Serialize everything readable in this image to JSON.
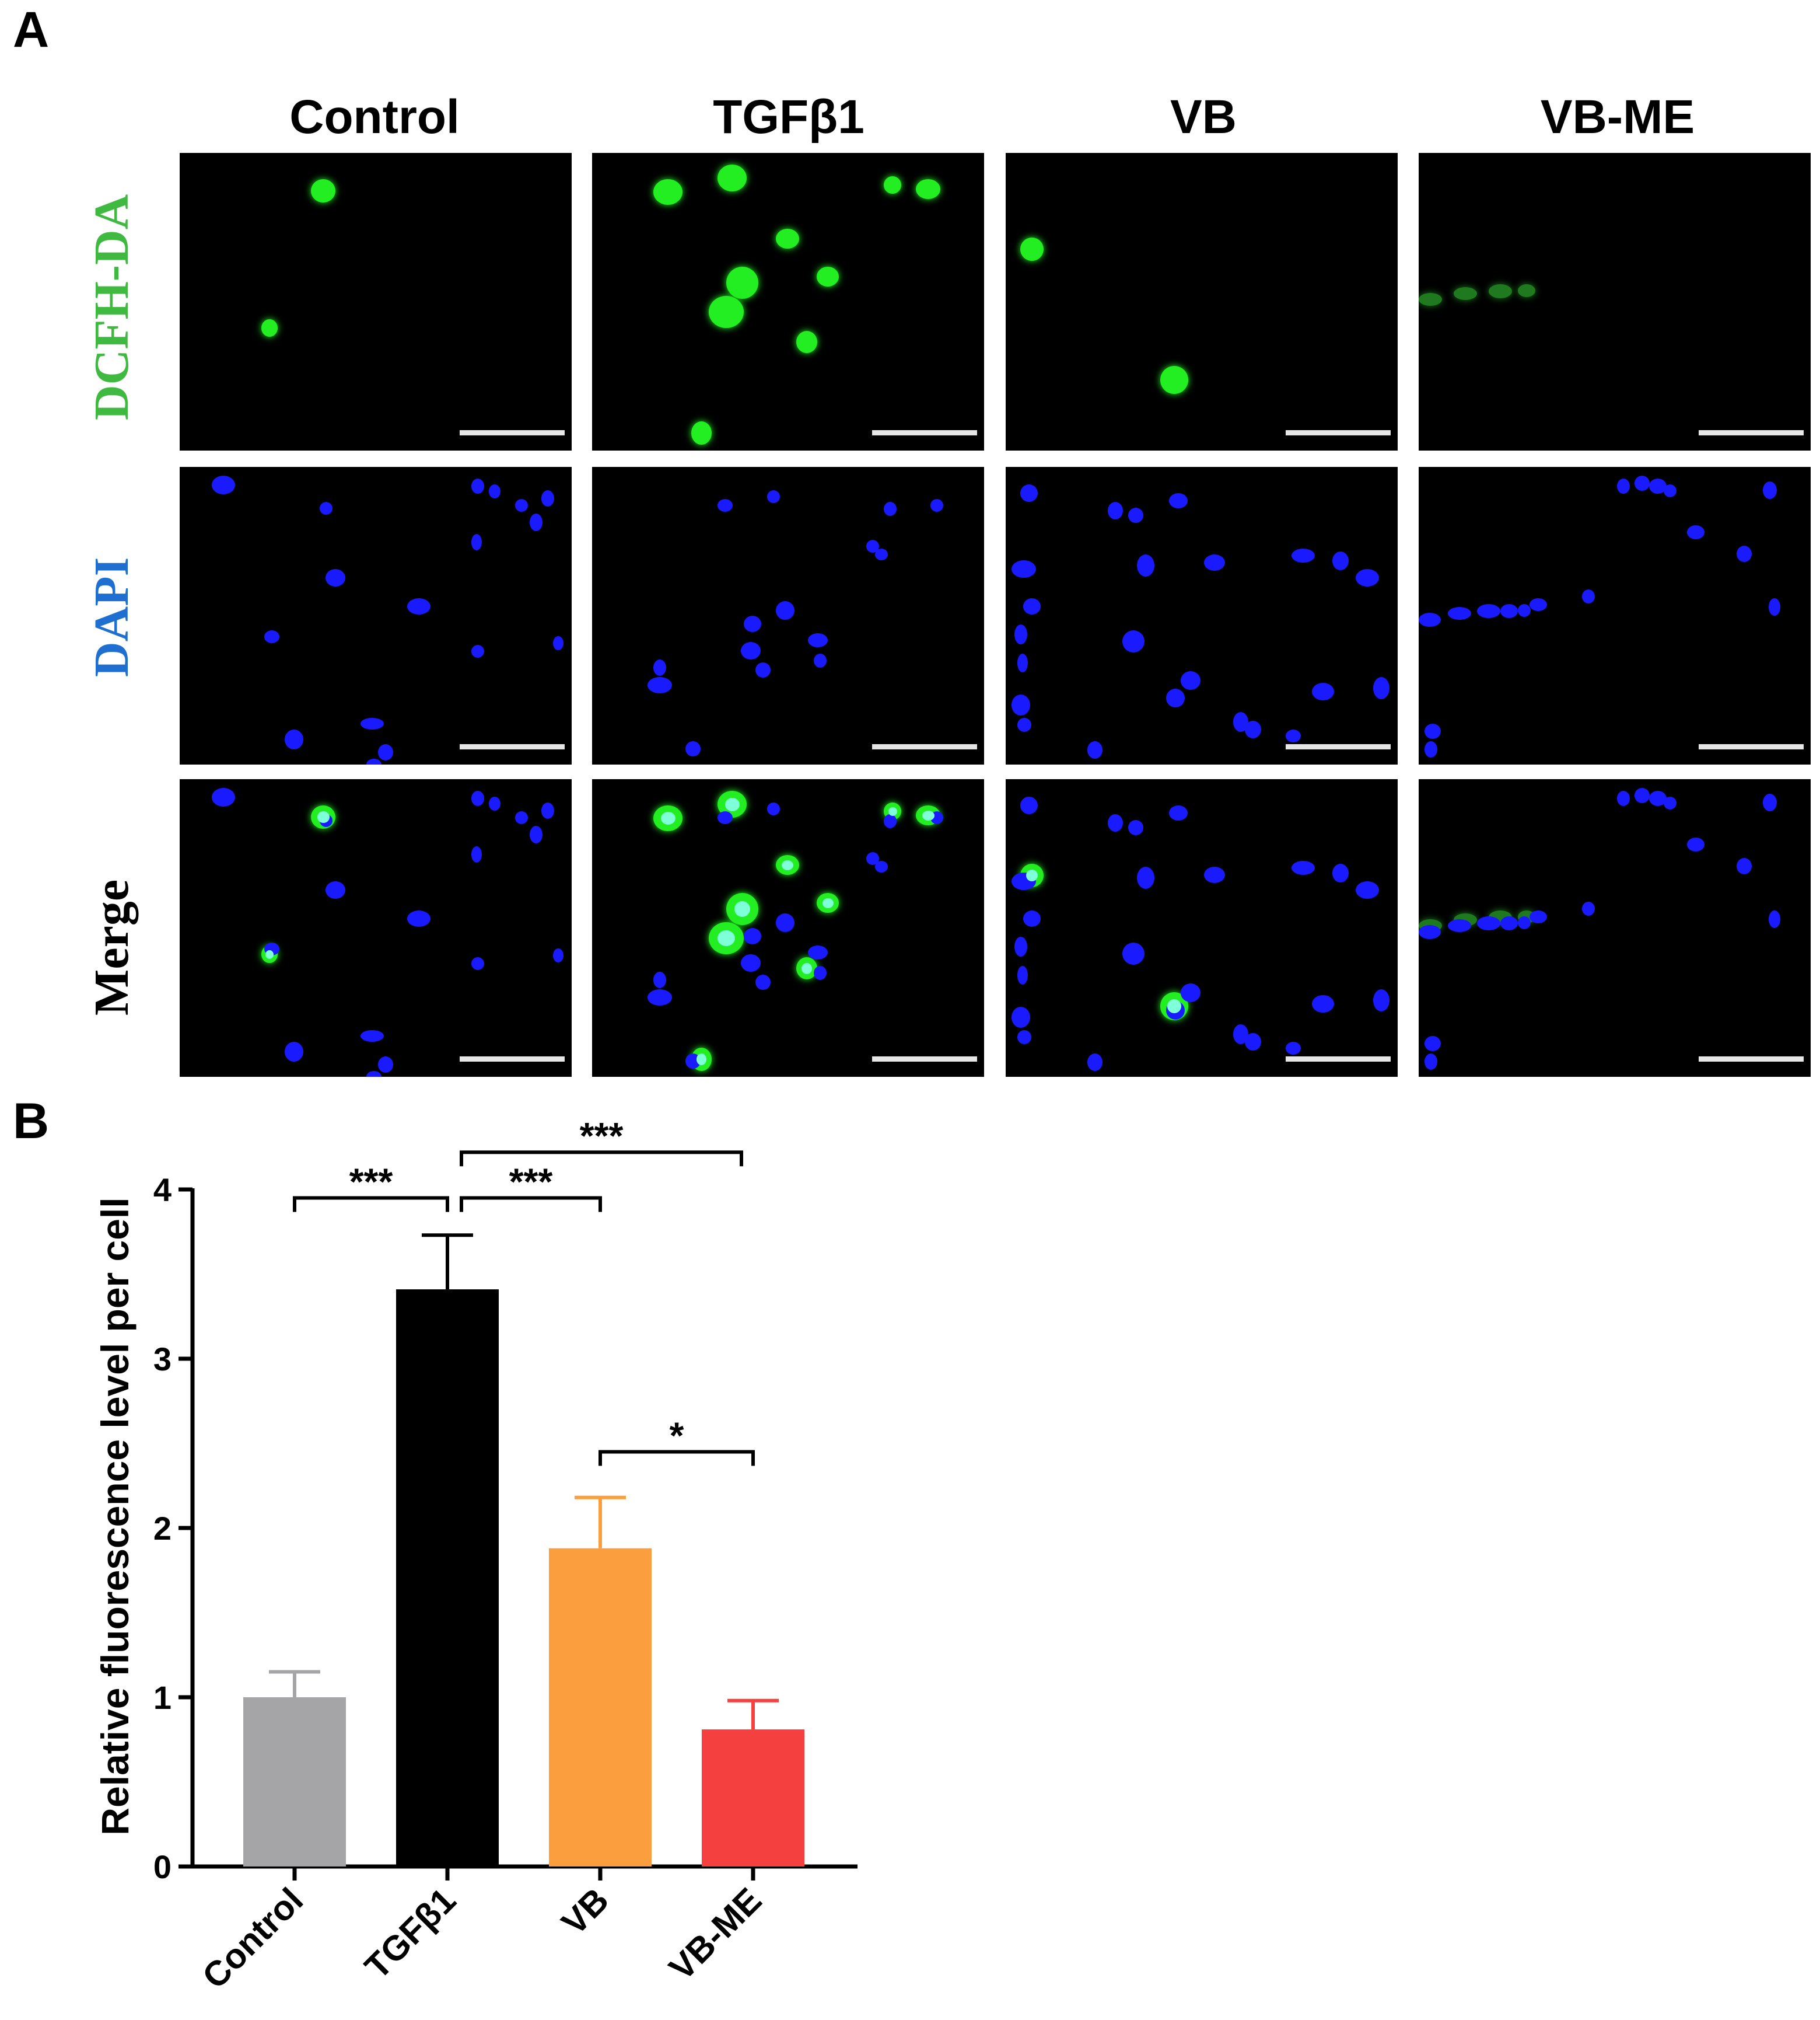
{
  "panel_a": {
    "letter": "A",
    "columns": [
      "Control",
      "TGFβ1",
      "VB",
      "VB-ME"
    ],
    "rows": [
      {
        "label": "DCFH-DA",
        "color": "#3fb93f"
      },
      {
        "label": "DAPI",
        "color": "#1f6fd0"
      },
      {
        "label": "Merge",
        "color": "#000000"
      }
    ],
    "colors": {
      "green_stain": "#22ee22",
      "blue_stain": "#1a1aff",
      "image_background": "#000000",
      "scale_bar": "#e6e6e6"
    }
  },
  "panel_b": {
    "letter": "B"
  },
  "chart_data": {
    "type": "bar",
    "categories": [
      "Control",
      "TGFβ1",
      "VB",
      "VB-ME"
    ],
    "values": [
      1.0,
      3.41,
      1.88,
      0.81
    ],
    "errors": [
      0.15,
      0.32,
      0.3,
      0.17
    ],
    "colors": [
      "#a5a5a8",
      "#000000",
      "#fb9f3e",
      "#f54040"
    ],
    "ylabel": "Relative fluorescence level per cell",
    "xlabel": "",
    "ylim": [
      0,
      4
    ],
    "yticks": [
      0,
      1,
      2,
      3,
      4
    ],
    "grid": false,
    "significance": [
      {
        "from": "Control",
        "to": "TGFβ1",
        "label": "***"
      },
      {
        "from": "TGFβ1",
        "to": "VB",
        "label": "***"
      },
      {
        "from": "TGFβ1",
        "to": "VB-ME",
        "label": "***"
      },
      {
        "from": "VB",
        "to": "VB-ME",
        "label": "*"
      }
    ]
  }
}
